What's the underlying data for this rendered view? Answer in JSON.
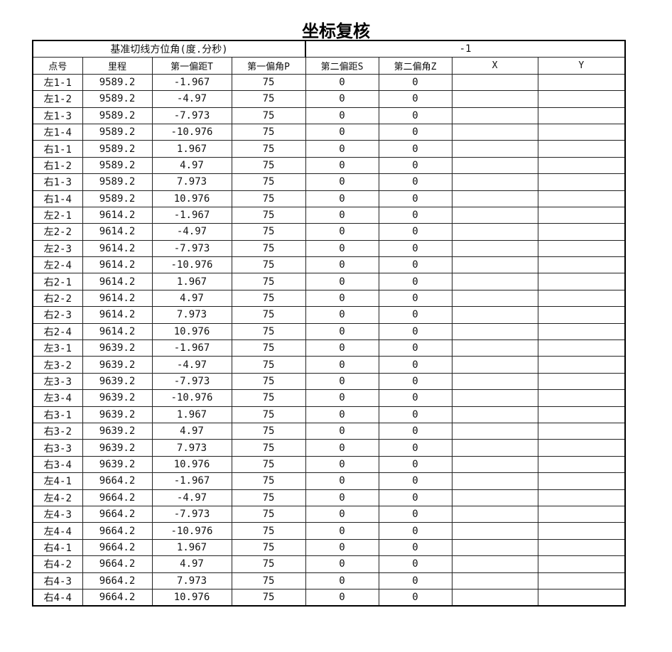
{
  "title": "坐标复核",
  "base_azimuth": {
    "label": "基准切线方位角(度.分秒)",
    "value": "-1"
  },
  "columns": [
    "点号",
    "里程",
    "第一偏距T",
    "第一偏角P",
    "第二偏距S",
    "第二偏角Z",
    "X",
    "Y"
  ],
  "rows": [
    [
      "左1-1",
      "9589.2",
      "-1.967",
      "75",
      "0",
      "0",
      "",
      ""
    ],
    [
      "左1-2",
      "9589.2",
      "-4.97",
      "75",
      "0",
      "0",
      "",
      ""
    ],
    [
      "左1-3",
      "9589.2",
      "-7.973",
      "75",
      "0",
      "0",
      "",
      ""
    ],
    [
      "左1-4",
      "9589.2",
      "-10.976",
      "75",
      "0",
      "0",
      "",
      ""
    ],
    [
      "右1-1",
      "9589.2",
      "1.967",
      "75",
      "0",
      "0",
      "",
      ""
    ],
    [
      "右1-2",
      "9589.2",
      "4.97",
      "75",
      "0",
      "0",
      "",
      ""
    ],
    [
      "右1-3",
      "9589.2",
      "7.973",
      "75",
      "0",
      "0",
      "",
      ""
    ],
    [
      "右1-4",
      "9589.2",
      "10.976",
      "75",
      "0",
      "0",
      "",
      ""
    ],
    [
      "左2-1",
      "9614.2",
      "-1.967",
      "75",
      "0",
      "0",
      "",
      ""
    ],
    [
      "左2-2",
      "9614.2",
      "-4.97",
      "75",
      "0",
      "0",
      "",
      ""
    ],
    [
      "左2-3",
      "9614.2",
      "-7.973",
      "75",
      "0",
      "0",
      "",
      ""
    ],
    [
      "左2-4",
      "9614.2",
      "-10.976",
      "75",
      "0",
      "0",
      "",
      ""
    ],
    [
      "右2-1",
      "9614.2",
      "1.967",
      "75",
      "0",
      "0",
      "",
      ""
    ],
    [
      "右2-2",
      "9614.2",
      "4.97",
      "75",
      "0",
      "0",
      "",
      ""
    ],
    [
      "右2-3",
      "9614.2",
      "7.973",
      "75",
      "0",
      "0",
      "",
      ""
    ],
    [
      "右2-4",
      "9614.2",
      "10.976",
      "75",
      "0",
      "0",
      "",
      ""
    ],
    [
      "左3-1",
      "9639.2",
      "-1.967",
      "75",
      "0",
      "0",
      "",
      ""
    ],
    [
      "左3-2",
      "9639.2",
      "-4.97",
      "75",
      "0",
      "0",
      "",
      ""
    ],
    [
      "左3-3",
      "9639.2",
      "-7.973",
      "75",
      "0",
      "0",
      "",
      ""
    ],
    [
      "左3-4",
      "9639.2",
      "-10.976",
      "75",
      "0",
      "0",
      "",
      ""
    ],
    [
      "右3-1",
      "9639.2",
      "1.967",
      "75",
      "0",
      "0",
      "",
      ""
    ],
    [
      "右3-2",
      "9639.2",
      "4.97",
      "75",
      "0",
      "0",
      "",
      ""
    ],
    [
      "右3-3",
      "9639.2",
      "7.973",
      "75",
      "0",
      "0",
      "",
      ""
    ],
    [
      "右3-4",
      "9639.2",
      "10.976",
      "75",
      "0",
      "0",
      "",
      ""
    ],
    [
      "左4-1",
      "9664.2",
      "-1.967",
      "75",
      "0",
      "0",
      "",
      ""
    ],
    [
      "左4-2",
      "9664.2",
      "-4.97",
      "75",
      "0",
      "0",
      "",
      ""
    ],
    [
      "左4-3",
      "9664.2",
      "-7.973",
      "75",
      "0",
      "0",
      "",
      ""
    ],
    [
      "左4-4",
      "9664.2",
      "-10.976",
      "75",
      "0",
      "0",
      "",
      ""
    ],
    [
      "右4-1",
      "9664.2",
      "1.967",
      "75",
      "0",
      "0",
      "",
      ""
    ],
    [
      "右4-2",
      "9664.2",
      "4.97",
      "75",
      "0",
      "0",
      "",
      ""
    ],
    [
      "右4-3",
      "9664.2",
      "7.973",
      "75",
      "0",
      "0",
      "",
      ""
    ],
    [
      "右4-4",
      "9664.2",
      "10.976",
      "75",
      "0",
      "0",
      "",
      ""
    ]
  ]
}
